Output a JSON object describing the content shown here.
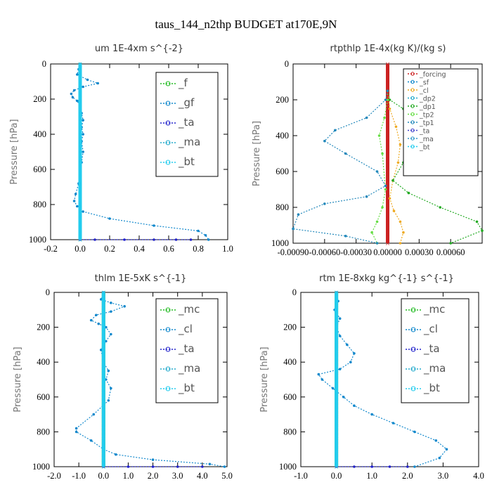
{
  "figure_title": "taus_144_n2thp  BUDGET at170E,9N",
  "chart_data": [
    {
      "type": "line",
      "title": "um   1E-4xm s^{-2}",
      "ylabel": "Pressure [hPa]",
      "xlim": [
        -0.2,
        1.0
      ],
      "ylim": [
        0,
        1000
      ],
      "xticks": [
        "-0.2",
        "0.0",
        "0.2",
        "0.4",
        "0.6",
        "0.8",
        "1.0"
      ],
      "yticks": [
        "0",
        "200",
        "400",
        "600",
        "800",
        "1000"
      ],
      "legend": [
        "_f",
        "_gf",
        "_ta",
        "_ma",
        "_bt"
      ],
      "series": [
        {
          "name": "_f",
          "color": "#22bb22",
          "x": [
            0,
            0
          ],
          "y": [
            0,
            1000
          ]
        },
        {
          "name": "_gf",
          "color": "#1188cc",
          "x": [
            0.0,
            -0.01,
            -0.02,
            0.05,
            0.12,
            0.02,
            -0.04,
            -0.06,
            -0.05,
            -0.02,
            0.0,
            0.01,
            0.02,
            0.01,
            0.02,
            0.01,
            0.02,
            0.01,
            0.0,
            -0.01,
            -0.03,
            -0.04,
            -0.02,
            0.02,
            0.2,
            0.5,
            0.8,
            0.85,
            0.87
          ],
          "y": [
            0,
            30,
            60,
            90,
            110,
            130,
            150,
            170,
            190,
            210,
            240,
            280,
            320,
            360,
            400,
            440,
            500,
            560,
            620,
            680,
            740,
            780,
            810,
            840,
            880,
            920,
            950,
            975,
            1000
          ]
        },
        {
          "name": "_ta",
          "color": "#2222cc",
          "x": [
            0.0,
            0.1,
            0.3,
            0.5,
            0.65,
            0.75
          ],
          "y": [
            1000,
            1000,
            1000,
            1000,
            1000,
            1000
          ]
        },
        {
          "name": "_bt",
          "color": "#22ccee",
          "x": [
            0,
            0
          ],
          "y": [
            0,
            1000
          ]
        }
      ]
    },
    {
      "type": "line",
      "title": "rtpthlp   1E-4x(kg K)/(kg s)",
      "ylabel": "Pressure [hPa]",
      "xlim": [
        -0.0009,
        0.0009
      ],
      "ylim": [
        0,
        1000
      ],
      "xticks": [
        "-0.00090",
        "-0.00060",
        "-0.00030",
        "0.00000",
        "0.00030",
        "0.00060"
      ],
      "yticks": [
        "0",
        "200",
        "400",
        "600",
        "800",
        "1000"
      ],
      "legend": [
        "_forcing",
        "_sf",
        "_cl",
        "_dp2",
        "_dp1",
        "_tp2",
        "_tp1",
        "_ta",
        "_ma",
        "_bt"
      ],
      "series": [
        {
          "name": "_forcing",
          "color": "#cc2222",
          "x": [
            0,
            0
          ],
          "y": [
            0,
            1000
          ]
        },
        {
          "name": "_cl",
          "color": "#eeaa22",
          "x": [
            0.0,
            2e-05,
            8e-05,
            0.00012,
            0.0001,
            5e-05,
            2e-05,
            6e-05,
            0.00012,
            0.00015,
            0.00012
          ],
          "y": [
            150,
            250,
            350,
            450,
            550,
            650,
            750,
            820,
            880,
            940,
            1000
          ]
        },
        {
          "name": "_dp1",
          "color": "#22aa22",
          "x": [
            0.0,
            2e-05,
            0.00015,
            0.0003,
            0.0003,
            0.00015,
            5e-05,
            0.0002,
            0.0005,
            0.00085,
            0.0009,
            0.0006
          ],
          "y": [
            150,
            200,
            250,
            350,
            450,
            550,
            650,
            720,
            800,
            880,
            930,
            1000
          ]
        },
        {
          "name": "_tp2",
          "color": "#66dd44",
          "x": [
            0.0,
            -3e-05,
            -8e-05,
            -5e-05,
            -2e-05,
            -5e-05,
            -0.0001,
            -0.00015,
            -0.0001
          ],
          "y": [
            200,
            300,
            400,
            500,
            700,
            800,
            880,
            940,
            1000
          ]
        },
        {
          "name": "_tp1",
          "color": "#2288bb",
          "x": [
            0.0,
            -2e-05,
            -0.0002,
            -0.0005,
            -0.0006,
            -0.0004,
            -0.0001,
            -2e-05,
            -0.0002,
            -0.0006,
            -0.00085,
            -0.0009,
            -0.0004,
            -0.0001
          ],
          "y": [
            150,
            200,
            300,
            370,
            430,
            500,
            600,
            680,
            740,
            780,
            840,
            920,
            960,
            1000
          ]
        }
      ]
    },
    {
      "type": "line",
      "title": "thlm   1E-5xK s^{-1}",
      "ylabel": "Pressure [hPa]",
      "xlim": [
        -2.0,
        5.0
      ],
      "ylim": [
        0,
        1000
      ],
      "xticks": [
        "-2.0",
        "-1.0",
        "0.0",
        "1.0",
        "2.0",
        "3.0",
        "4.0",
        "5.0"
      ],
      "yticks": [
        "0",
        "200",
        "400",
        "600",
        "800",
        "1000"
      ],
      "legend": [
        "_mc",
        "_cl",
        "_ta",
        "_ma",
        "_bt"
      ],
      "series": [
        {
          "name": "_mc",
          "color": "#22bb22",
          "x": [
            0,
            0
          ],
          "y": [
            0,
            1000
          ]
        },
        {
          "name": "_cl",
          "color": "#1188cc",
          "x": [
            0.0,
            -0.1,
            0.3,
            0.85,
            0.3,
            -0.3,
            -0.5,
            -0.2,
            0.1,
            0.3,
            0.1,
            -0.1,
            0.0,
            0.2,
            0.1,
            0.3,
            0.2,
            -0.4,
            -1.1,
            -1.1,
            -0.5,
            0.0,
            0.5,
            2.0,
            4.3,
            4.9
          ],
          "y": [
            0,
            40,
            60,
            80,
            110,
            130,
            160,
            180,
            200,
            240,
            280,
            330,
            400,
            450,
            500,
            550,
            620,
            700,
            780,
            800,
            850,
            900,
            930,
            960,
            985,
            1000
          ]
        },
        {
          "name": "_ta",
          "color": "#2222cc",
          "x": [
            0.0,
            1.0,
            2.0,
            3.0,
            4.0
          ],
          "y": [
            1000,
            1000,
            1000,
            1000,
            1000
          ]
        },
        {
          "name": "_bt",
          "color": "#22ccee",
          "x": [
            0,
            0
          ],
          "y": [
            0,
            1000
          ]
        }
      ]
    },
    {
      "type": "line",
      "title": "rtm   1E-8xkg kg^{-1} s^{-1}",
      "ylabel": "Pressure [hPa]",
      "xlim": [
        -1.0,
        4.0
      ],
      "ylim": [
        0,
        1000
      ],
      "xticks": [
        "-1.0",
        "0.0",
        "1.0",
        "2.0",
        "3.0",
        "4.0"
      ],
      "yticks": [
        "0",
        "200",
        "400",
        "600",
        "800",
        "1000"
      ],
      "legend": [
        "_mc",
        "_cl",
        "_ta",
        "_ma",
        "_bt"
      ],
      "series": [
        {
          "name": "_mc",
          "color": "#22bb22",
          "x": [
            0,
            0
          ],
          "y": [
            0,
            1000
          ]
        },
        {
          "name": "_cl",
          "color": "#1188cc",
          "x": [
            0.0,
            0.05,
            -0.05,
            0.1,
            0.0,
            0.1,
            0.3,
            0.5,
            0.4,
            0.1,
            -0.5,
            -0.4,
            -0.1,
            0.2,
            0.5,
            1.0,
            1.6,
            2.2,
            2.8,
            3.1,
            2.9,
            2.2
          ],
          "y": [
            0,
            50,
            100,
            150,
            200,
            250,
            300,
            350,
            400,
            440,
            470,
            500,
            550,
            600,
            650,
            700,
            750,
            800,
            850,
            900,
            950,
            1000
          ]
        },
        {
          "name": "_ta",
          "color": "#2222cc",
          "x": [
            0.0,
            0.5,
            1.0,
            1.5,
            2.0
          ],
          "y": [
            1000,
            1000,
            1000,
            1000,
            1000
          ]
        },
        {
          "name": "_bt",
          "color": "#22ccee",
          "x": [
            0,
            0
          ],
          "y": [
            0,
            1000
          ]
        }
      ]
    }
  ]
}
